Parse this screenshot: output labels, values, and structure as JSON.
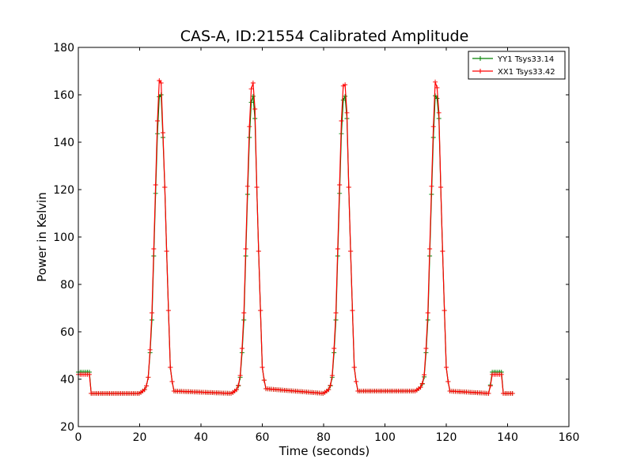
{
  "chart_data": {
    "type": "line",
    "title": "CAS-A, ID:21554 Calibrated Amplitude",
    "xlabel": "Time (seconds)",
    "ylabel": "Power in Kelvin",
    "xlim": [
      0,
      160
    ],
    "ylim": [
      20,
      180
    ],
    "xticks": [
      "0",
      "20",
      "40",
      "60",
      "80",
      "100",
      "120",
      "140",
      "160"
    ],
    "yticks": [
      "20",
      "40",
      "60",
      "80",
      "100",
      "120",
      "140",
      "160",
      "180"
    ],
    "grid": false,
    "legend_position": "top-right",
    "marker": "+",
    "series": [
      {
        "name": "YY1 Tsys33.14",
        "color": "#008000",
        "points": [
          [
            0,
            43
          ],
          [
            4,
            43
          ],
          [
            4.2,
            34
          ],
          [
            20,
            34
          ],
          [
            21,
            35
          ],
          [
            22,
            36
          ],
          [
            23,
            42
          ],
          [
            24,
            65
          ],
          [
            25,
            110
          ],
          [
            26,
            152
          ],
          [
            26.5,
            161
          ],
          [
            27,
            160
          ],
          [
            28,
            130
          ],
          [
            29,
            85
          ],
          [
            30,
            45
          ],
          [
            31,
            35
          ],
          [
            50,
            34
          ],
          [
            51,
            35
          ],
          [
            52,
            36
          ],
          [
            53,
            42
          ],
          [
            54,
            65
          ],
          [
            55,
            110
          ],
          [
            56,
            150
          ],
          [
            56.7,
            162
          ],
          [
            57.5,
            155
          ],
          [
            58,
            130
          ],
          [
            59,
            85
          ],
          [
            60,
            45
          ],
          [
            61,
            36
          ],
          [
            80,
            34
          ],
          [
            81,
            35
          ],
          [
            82,
            36
          ],
          [
            83,
            42
          ],
          [
            84,
            65
          ],
          [
            85,
            110
          ],
          [
            86,
            152
          ],
          [
            86.7,
            162
          ],
          [
            87.5,
            155
          ],
          [
            88,
            130
          ],
          [
            89,
            85
          ],
          [
            90,
            45
          ],
          [
            91,
            35
          ],
          [
            110,
            35
          ],
          [
            111,
            36
          ],
          [
            112,
            37
          ],
          [
            113,
            42
          ],
          [
            114,
            65
          ],
          [
            115,
            110
          ],
          [
            116,
            150
          ],
          [
            116.5,
            162
          ],
          [
            117.5,
            155
          ],
          [
            118,
            130
          ],
          [
            119,
            85
          ],
          [
            120,
            45
          ],
          [
            121,
            35
          ],
          [
            134,
            34
          ],
          [
            135,
            43
          ],
          [
            138,
            43
          ],
          [
            138.2,
            34
          ],
          [
            142,
            34
          ]
        ]
      },
      {
        "name": "XX1 Tsys33.42",
        "color": "#ff0000",
        "points": [
          [
            0,
            42
          ],
          [
            4,
            42
          ],
          [
            4.2,
            34
          ],
          [
            20,
            34
          ],
          [
            21,
            35
          ],
          [
            22,
            36
          ],
          [
            23,
            42
          ],
          [
            24,
            68
          ],
          [
            25,
            113
          ],
          [
            26,
            158
          ],
          [
            26.5,
            168
          ],
          [
            27,
            165
          ],
          [
            28,
            130
          ],
          [
            29,
            85
          ],
          [
            30,
            45
          ],
          [
            31,
            35
          ],
          [
            50,
            34
          ],
          [
            51,
            35
          ],
          [
            52,
            36
          ],
          [
            53,
            43
          ],
          [
            54,
            68
          ],
          [
            55,
            113
          ],
          [
            56,
            155
          ],
          [
            56.7,
            168
          ],
          [
            57.5,
            160
          ],
          [
            58,
            130
          ],
          [
            59,
            85
          ],
          [
            60,
            45
          ],
          [
            61,
            36
          ],
          [
            80,
            34
          ],
          [
            81,
            35
          ],
          [
            82,
            36
          ],
          [
            83,
            43
          ],
          [
            84,
            68
          ],
          [
            85,
            113
          ],
          [
            86,
            158
          ],
          [
            86.7,
            168
          ],
          [
            87.5,
            158
          ],
          [
            88,
            130
          ],
          [
            89,
            85
          ],
          [
            90,
            45
          ],
          [
            91,
            35
          ],
          [
            110,
            35
          ],
          [
            111,
            36
          ],
          [
            112,
            37
          ],
          [
            113,
            43
          ],
          [
            114,
            68
          ],
          [
            115,
            113
          ],
          [
            116,
            155
          ],
          [
            116.5,
            168
          ],
          [
            117.5,
            158
          ],
          [
            118,
            130
          ],
          [
            119,
            85
          ],
          [
            120,
            45
          ],
          [
            121,
            35
          ],
          [
            134,
            34
          ],
          [
            135,
            42
          ],
          [
            138,
            42
          ],
          [
            138.2,
            34
          ],
          [
            142,
            34
          ]
        ]
      }
    ]
  }
}
